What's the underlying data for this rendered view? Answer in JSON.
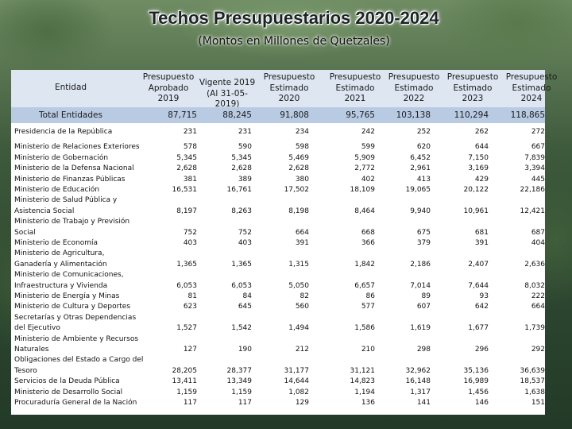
{
  "title": "Techos Presupuestarios 2020-2024",
  "subtitle": "(Montos en Millones de Quetzales)",
  "table": {
    "entity_header": "Entidad",
    "columns": [
      [
        "Presupuesto",
        "Aprobado",
        "2019"
      ],
      [
        "Vigente 2019",
        "(Al 31-05-2019)"
      ],
      [
        "Presupuesto",
        "Estimado",
        "2020"
      ],
      [
        "Presupuesto",
        "Estimado",
        "2021"
      ],
      [
        "Presupuesto",
        "Estimado",
        "2022"
      ],
      [
        "Presupuesto",
        "Estimado",
        "2023"
      ],
      [
        "Presupuesto",
        "Estimado",
        "2024"
      ]
    ],
    "total_label": "Total Entidades",
    "totals": [
      "87,715",
      "88,245",
      "91,808",
      "95,765",
      "103,138",
      "110,294",
      "118,865"
    ],
    "rows": [
      {
        "name": [
          "Presidencia de la República"
        ],
        "values": [
          "231",
          "231",
          "234",
          "242",
          "252",
          "262",
          "272"
        ]
      },
      {
        "name": [
          "Ministerio de Relaciones Exteriores"
        ],
        "values": [
          "578",
          "590",
          "598",
          "599",
          "620",
          "644",
          "667"
        ]
      },
      {
        "name": [
          "Ministerio de Gobernación"
        ],
        "values": [
          "5,345",
          "5,345",
          "5,469",
          "5,909",
          "6,452",
          "7,150",
          "7,839"
        ]
      },
      {
        "name": [
          "Ministerio de la Defensa Nacional"
        ],
        "values": [
          "2,628",
          "2,628",
          "2,628",
          "2,772",
          "2,961",
          "3,169",
          "3,394"
        ]
      },
      {
        "name": [
          "Ministerio de Finanzas Públicas"
        ],
        "values": [
          "381",
          "389",
          "380",
          "402",
          "413",
          "429",
          "445"
        ]
      },
      {
        "name": [
          "Ministerio de Educación"
        ],
        "values": [
          "16,531",
          "16,761",
          "17,502",
          "18,109",
          "19,065",
          "20,122",
          "22,186"
        ]
      },
      {
        "name": [
          "Ministerio de Salud Pública y",
          "Asistencia Social"
        ],
        "values": [
          "8,197",
          "8,263",
          "8,198",
          "8,464",
          "9,940",
          "10,961",
          "12,421"
        ]
      },
      {
        "name": [
          "Ministerio de Trabajo y Previsión",
          "Social"
        ],
        "values": [
          "752",
          "752",
          "664",
          "668",
          "675",
          "681",
          "687"
        ]
      },
      {
        "name": [
          "Ministerio de Economía"
        ],
        "values": [
          "403",
          "403",
          "391",
          "366",
          "379",
          "391",
          "404"
        ]
      },
      {
        "name": [
          "Ministerio de Agricultura,",
          "Ganadería y Alimentación"
        ],
        "values": [
          "1,365",
          "1,365",
          "1,315",
          "1,842",
          "2,186",
          "2,407",
          "2,636"
        ]
      },
      {
        "name": [
          "Ministerio de Comunicaciones,",
          "Infraestructura y Vivienda"
        ],
        "values": [
          "6,053",
          "6,053",
          "5,050",
          "6,657",
          "7,014",
          "7,644",
          "8,032"
        ]
      },
      {
        "name": [
          "Ministerio de Energía y Minas"
        ],
        "values": [
          "81",
          "84",
          "82",
          "86",
          "89",
          "93",
          "222"
        ]
      },
      {
        "name": [
          "Ministerio de Cultura y Deportes"
        ],
        "values": [
          "623",
          "645",
          "560",
          "577",
          "607",
          "642",
          "664"
        ]
      },
      {
        "name": [
          "Secretarías y Otras Dependencias",
          "del Ejecutivo"
        ],
        "values": [
          "1,527",
          "1,542",
          "1,494",
          "1,586",
          "1,619",
          "1,677",
          "1,739"
        ]
      },
      {
        "name": [
          "Ministerio de Ambiente y Recursos",
          "Naturales"
        ],
        "values": [
          "127",
          "190",
          "212",
          "210",
          "298",
          "296",
          "292"
        ]
      },
      {
        "name": [
          "Obligaciones del Estado a Cargo del",
          "Tesoro"
        ],
        "values": [
          "28,205",
          "28,377",
          "31,177",
          "31,121",
          "32,962",
          "35,136",
          "36,639"
        ]
      },
      {
        "name": [
          "Servicios de la Deuda Pública"
        ],
        "values": [
          "13,411",
          "13,349",
          "14,644",
          "14,823",
          "16,148",
          "16,989",
          "18,537"
        ]
      },
      {
        "name": [
          "Ministerio de Desarrollo Social"
        ],
        "values": [
          "1,159",
          "1,159",
          "1,082",
          "1,194",
          "1,317",
          "1,456",
          "1,638"
        ]
      },
      {
        "name": [
          "Procuraduría General de la Nación"
        ],
        "values": [
          "117",
          "117",
          "129",
          "136",
          "141",
          "146",
          "151"
        ]
      }
    ]
  }
}
